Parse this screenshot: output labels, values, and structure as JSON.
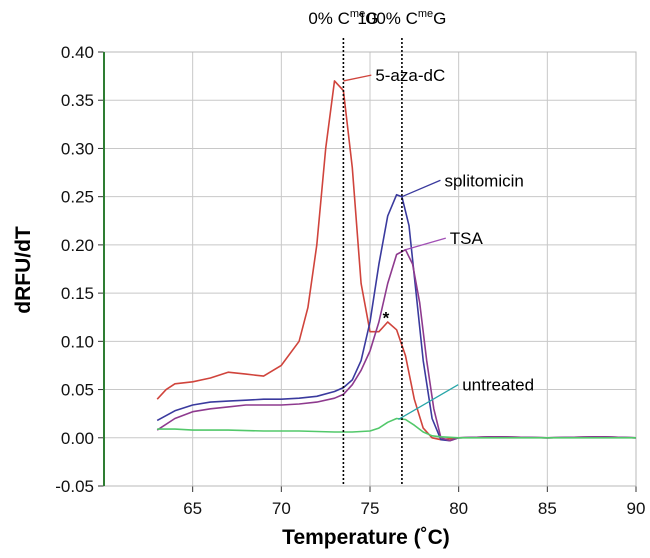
{
  "chart_data": {
    "type": "line",
    "xlabel": "Temperature (˚C)",
    "ylabel": "dRFU/dT",
    "xlim": [
      60,
      90
    ],
    "ylim": [
      -0.05,
      0.4
    ],
    "xticks": [
      65,
      70,
      75,
      80,
      85,
      90
    ],
    "yticks": [
      -0.05,
      0.0,
      0.05,
      0.1,
      0.15,
      0.2,
      0.25,
      0.3,
      0.35,
      0.4
    ],
    "ytick_labels": [
      "-0.05",
      "0.00",
      "0.05",
      "0.10",
      "0.15",
      "0.20",
      "0.25",
      "0.30",
      "0.35",
      "0.40"
    ],
    "xtick_labels": [
      "65",
      "70",
      "75",
      "80",
      "85",
      "90"
    ],
    "grid": true,
    "reference_lines": [
      {
        "x": 73.5,
        "label_main": "0% C",
        "label_sup": "me",
        "label_end": "G"
      },
      {
        "x": 76.8,
        "label_main": "100% C",
        "label_sup": "me",
        "label_end": "G"
      }
    ],
    "series": [
      {
        "name": "5-aza-dC",
        "color": "#d0443c",
        "x": [
          63,
          63.5,
          64,
          65,
          66,
          67,
          68,
          69,
          70,
          71,
          71.5,
          72,
          72.5,
          73,
          73.5,
          74,
          74.5,
          75,
          75.5,
          76,
          76.5,
          77,
          77.5,
          78,
          78.5,
          79,
          80,
          82,
          85,
          88,
          90
        ],
        "y": [
          0.04,
          0.05,
          0.056,
          0.058,
          0.062,
          0.068,
          0.066,
          0.064,
          0.075,
          0.1,
          0.135,
          0.2,
          0.3,
          0.37,
          0.36,
          0.28,
          0.16,
          0.11,
          0.11,
          0.12,
          0.112,
          0.085,
          0.04,
          0.01,
          0.0,
          -0.002,
          0.0,
          0.001,
          0.0,
          0.001,
          0.0
        ]
      },
      {
        "name": "splitomicin",
        "color": "#3a3a9e",
        "x": [
          63,
          64,
          65,
          66,
          67,
          68,
          69,
          70,
          71,
          72,
          73,
          73.5,
          74,
          74.5,
          75,
          75.5,
          76,
          76.5,
          76.8,
          77.2,
          77.6,
          78,
          78.5,
          79,
          79.5,
          80,
          82,
          85,
          88,
          90
        ],
        "y": [
          0.018,
          0.028,
          0.034,
          0.037,
          0.038,
          0.039,
          0.04,
          0.04,
          0.041,
          0.043,
          0.048,
          0.052,
          0.06,
          0.08,
          0.12,
          0.18,
          0.23,
          0.252,
          0.25,
          0.22,
          0.15,
          0.08,
          0.02,
          -0.002,
          -0.003,
          0.0,
          0.001,
          0.0,
          0.001,
          0.0
        ]
      },
      {
        "name": "TSA",
        "color": "#8e3a8e",
        "x": [
          63,
          64,
          65,
          66,
          67,
          68,
          69,
          70,
          71,
          72,
          73,
          73.5,
          74,
          74.5,
          75,
          75.5,
          76,
          76.5,
          77,
          77.4,
          77.8,
          78.2,
          78.6,
          79,
          79.5,
          80,
          82,
          85,
          88,
          90
        ],
        "y": [
          0.008,
          0.02,
          0.027,
          0.03,
          0.032,
          0.034,
          0.034,
          0.034,
          0.035,
          0.037,
          0.041,
          0.045,
          0.055,
          0.07,
          0.09,
          0.12,
          0.16,
          0.19,
          0.195,
          0.18,
          0.14,
          0.08,
          0.03,
          0.0,
          -0.003,
          0.0,
          0.001,
          0.0,
          0.001,
          0.0
        ]
      },
      {
        "name": "untreated",
        "color": "#52c86a",
        "x": [
          63,
          64,
          65,
          67,
          69,
          71,
          73,
          74,
          75,
          75.5,
          76,
          76.5,
          77,
          77.5,
          78,
          78.5,
          79,
          80,
          85,
          90
        ],
        "y": [
          0.009,
          0.009,
          0.008,
          0.008,
          0.007,
          0.007,
          0.006,
          0.006,
          0.007,
          0.01,
          0.016,
          0.02,
          0.019,
          0.013,
          0.006,
          0.002,
          0.001,
          0.0,
          0.0,
          0.0
        ]
      }
    ],
    "annotations": [
      {
        "text": "5-aza-dC",
        "series": "5-aza-dC",
        "point": [
          73.5,
          0.37
        ],
        "label_at": [
          75.3,
          0.376
        ],
        "color": "#d0443c"
      },
      {
        "text": "splitomicin",
        "series": "splitomicin",
        "point": [
          76.8,
          0.25
        ],
        "label_at": [
          79.2,
          0.267
        ],
        "color": "#3a3a9e"
      },
      {
        "text": "TSA",
        "series": "TSA",
        "point": [
          77.0,
          0.195
        ],
        "label_at": [
          79.5,
          0.207
        ],
        "color": "#a14fb5"
      },
      {
        "text": "untreated",
        "series": "untreated",
        "point": [
          76.6,
          0.019
        ],
        "label_at": [
          80.2,
          0.055
        ],
        "color": "#27a6a8"
      },
      {
        "text": "*",
        "series": "5-aza-dC",
        "point": [
          76.0,
          0.125
        ],
        "label_at": [
          75.9,
          0.127
        ],
        "color": "#000000"
      }
    ]
  }
}
